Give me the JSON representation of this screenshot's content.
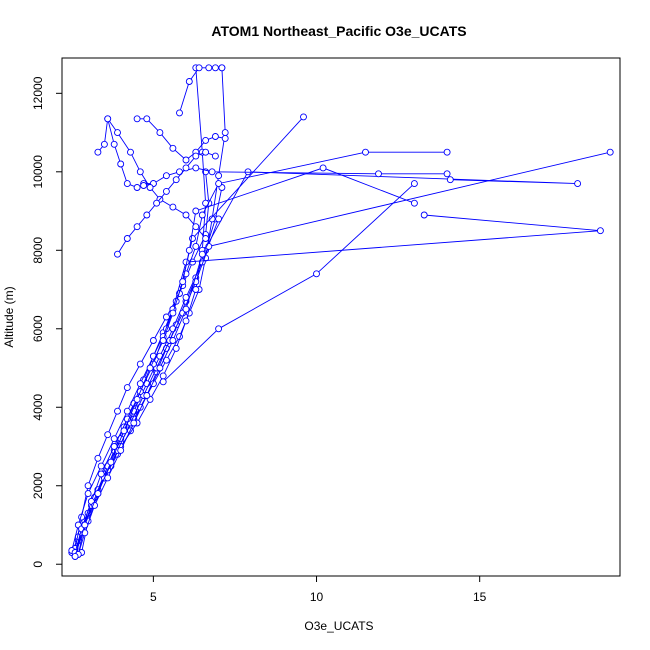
{
  "chart_data": {
    "type": "line",
    "title": "ATOM1 Northeast_Pacific O3e_UCATS",
    "xlabel": "O3e_UCATS",
    "ylabel": "Altitude (m)",
    "xlim": [
      2.2,
      19.3
    ],
    "ylim": [
      -300,
      12900
    ],
    "xticks": [
      5,
      10,
      15
    ],
    "yticks": [
      0,
      2000,
      4000,
      6000,
      8000,
      10000,
      12000
    ],
    "grid": false,
    "marker": "open-circle",
    "color": "#0000ff",
    "series": [
      {
        "x": [
          2.6,
          2.7,
          2.9,
          3.2,
          3.5,
          3.8,
          4.1,
          4.4,
          4.7,
          5.0,
          5.3,
          5.6,
          5.9,
          6.2,
          6.6,
          6.7,
          6.6
        ],
        "y": [
          250,
          600,
          1100,
          1700,
          2300,
          2900,
          3500,
          4100,
          4700,
          5300,
          5900,
          6500,
          7100,
          7700,
          8400,
          9200,
          10000
        ]
      },
      {
        "x": [
          2.5,
          2.7,
          3.0,
          3.3,
          3.7,
          4.0,
          4.4,
          4.8,
          5.1,
          5.4,
          5.7,
          6.0,
          6.3,
          6.6,
          6.9,
          7.1
        ],
        "y": [
          300,
          700,
          1300,
          1900,
          2500,
          3100,
          3700,
          4300,
          4900,
          5500,
          6100,
          6700,
          7300,
          8000,
          8800,
          9600
        ]
      },
      {
        "x": [
          2.6,
          2.8,
          3.1,
          3.5,
          3.9,
          4.3,
          4.6,
          5.0,
          5.4,
          5.8,
          6.1,
          6.4,
          6.6,
          6.8,
          7.0,
          7.2,
          7.1
        ],
        "y": [
          200,
          900,
          1600,
          2200,
          2800,
          3400,
          4000,
          4600,
          5200,
          5800,
          6400,
          7000,
          7800,
          8800,
          9900,
          11000,
          12650
        ]
      },
      {
        "x": [
          2.7,
          2.9,
          3.2,
          3.6,
          4.0,
          4.5,
          4.9,
          5.3,
          5.7,
          6.0,
          6.3,
          6.5,
          6.6,
          6.5,
          6.3
        ],
        "y": [
          250,
          1000,
          1700,
          2400,
          3000,
          3600,
          4200,
          4800,
          5500,
          6200,
          7000,
          8000,
          9200,
          10500,
          12650
        ]
      },
      {
        "x": [
          2.6,
          2.8,
          3.0,
          3.3,
          3.6,
          3.9,
          4.2,
          4.6,
          5.0,
          5.4,
          5.8,
          6.2,
          9.6
        ],
        "y": [
          400,
          1200,
          2000,
          2700,
          3300,
          3900,
          4500,
          5100,
          5700,
          6300,
          6900,
          8300,
          11400
        ]
      },
      {
        "x": [
          2.8,
          3.0,
          3.3,
          3.6,
          4.0,
          4.4,
          4.8,
          5.2,
          5.6,
          6.0,
          6.5,
          7.0
        ],
        "y": [
          300,
          1100,
          1800,
          2500,
          3200,
          3900,
          4600,
          5300,
          6000,
          6800,
          7700,
          8800
        ]
      },
      {
        "x": [
          2.6,
          2.8,
          3.1,
          3.5,
          3.9,
          4.3,
          4.7,
          5.1,
          5.5,
          5.9,
          6.3,
          6.7,
          19.0
        ],
        "y": [
          200,
          800,
          1500,
          2200,
          2900,
          3600,
          4300,
          5000,
          5700,
          6400,
          7200,
          8100,
          10500
        ]
      },
      {
        "x": [
          2.5,
          2.7,
          3.0,
          3.4,
          3.8,
          4.2,
          4.6,
          5.0,
          5.4,
          5.7,
          6.0,
          6.3,
          6.5,
          7.0,
          11.5,
          14.0
        ],
        "y": [
          350,
          1000,
          1800,
          2500,
          3200,
          3900,
          4600,
          5300,
          6000,
          6700,
          7400,
          8100,
          8900,
          9700,
          10500,
          10500
        ]
      },
      {
        "x": [
          2.6,
          2.8,
          3.1,
          3.4,
          3.8,
          4.2,
          4.6,
          5.0,
          5.3,
          5.6,
          6.0,
          18.7,
          13.3
        ],
        "y": [
          300,
          900,
          1600,
          2300,
          3000,
          3700,
          4400,
          5100,
          5800,
          6500,
          7700,
          8500,
          8900
        ]
      },
      {
        "x": [
          2.7,
          2.9,
          3.2,
          3.6,
          4.0,
          4.4,
          4.8,
          5.2,
          5.6,
          6.0,
          6.5,
          7.9,
          18.0,
          14.1
        ],
        "y": [
          250,
          800,
          1500,
          2200,
          2900,
          3600,
          4300,
          5000,
          5700,
          6500,
          7900,
          10000,
          9700,
          9800
        ]
      },
      {
        "x": [
          2.6,
          2.9,
          3.3,
          3.7,
          4.1,
          4.5,
          4.9,
          5.3,
          5.6,
          5.9,
          6.1,
          6.3,
          10.2,
          13.0
        ],
        "y": [
          200,
          1000,
          1800,
          2600,
          3400,
          4200,
          5000,
          5700,
          6400,
          7200,
          8000,
          9000,
          10100,
          9200
        ]
      },
      {
        "x": [
          5.3,
          7.0,
          10.0,
          13.0
        ],
        "y": [
          4650,
          6000,
          7400,
          9700
        ]
      },
      {
        "x": [
          4.7,
          5.0,
          5.4,
          5.8,
          6.3,
          6.8,
          11.9,
          14.0
        ],
        "y": [
          9700,
          9700,
          9900,
          10000,
          10100,
          10000,
          9950,
          9950
        ]
      },
      {
        "x": [
          3.3,
          3.5,
          3.6,
          3.8,
          4.0,
          4.2,
          4.5,
          4.7,
          5.0
        ],
        "y": [
          10500,
          10700,
          11350,
          10700,
          10200,
          9700,
          9600,
          9650,
          9700
        ]
      },
      {
        "x": [
          3.6,
          3.9,
          4.3,
          4.6,
          4.9,
          5.2,
          5.6,
          6.0,
          6.3,
          6.6
        ],
        "y": [
          11350,
          11000,
          10500,
          10000,
          9600,
          9300,
          9100,
          8900,
          8600,
          8300
        ]
      },
      {
        "x": [
          4.5,
          4.8,
          5.2,
          5.6,
          6.0,
          6.3,
          6.6,
          6.9,
          7.2
        ],
        "y": [
          11350,
          11350,
          11000,
          10600,
          10300,
          10500,
          10800,
          10900,
          10850
        ]
      },
      {
        "x": [
          5.8,
          6.1,
          6.4,
          6.7,
          6.9,
          7.1
        ],
        "y": [
          11500,
          12300,
          12650,
          12650,
          12650,
          12650
        ]
      },
      {
        "x": [
          3.9,
          4.2,
          4.5,
          4.8,
          5.1,
          5.4,
          5.7,
          6.0,
          6.3,
          6.6,
          6.9
        ],
        "y": [
          7900,
          8300,
          8600,
          8900,
          9200,
          9500,
          9800,
          10100,
          10400,
          10500,
          10400
        ]
      }
    ]
  }
}
